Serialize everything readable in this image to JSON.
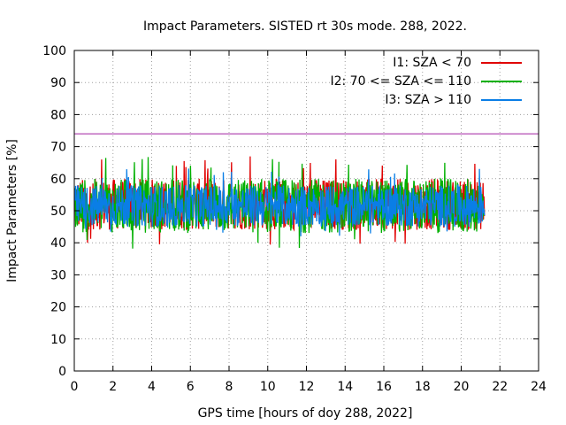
{
  "chart_data": {
    "type": "line",
    "title": "Impact Parameters. SISTED rt 30s mode. 288, 2022.",
    "xlabel": "GPS time [hours of doy 288, 2022]",
    "ylabel": "Impact Parameters [%]",
    "xlim": [
      0,
      24
    ],
    "ylim": [
      0,
      100
    ],
    "xticks": [
      0,
      2,
      4,
      6,
      8,
      10,
      12,
      14,
      16,
      18,
      20,
      22,
      24
    ],
    "yticks": [
      0,
      10,
      20,
      30,
      40,
      50,
      60,
      70,
      80,
      90,
      100
    ],
    "grid": true,
    "legend_position": "top-right",
    "data_x_range": [
      0,
      21.2
    ],
    "series": [
      {
        "name": "I1: SZA < 70",
        "color": "#e00000",
        "typical_range": [
          44,
          60
        ],
        "extremes": [
          39,
          67
        ]
      },
      {
        "name": "I2: 70 <= SZA <= 110",
        "color": "#00b000",
        "typical_range": [
          43,
          60
        ],
        "extremes": [
          38,
          67
        ]
      },
      {
        "name": "I3: SZA > 110",
        "color": "#0a7ee6",
        "typical_range": [
          45,
          58
        ],
        "extremes": [
          42,
          64
        ]
      }
    ],
    "reference_line": {
      "y": 74,
      "color": "#a020a0"
    }
  }
}
